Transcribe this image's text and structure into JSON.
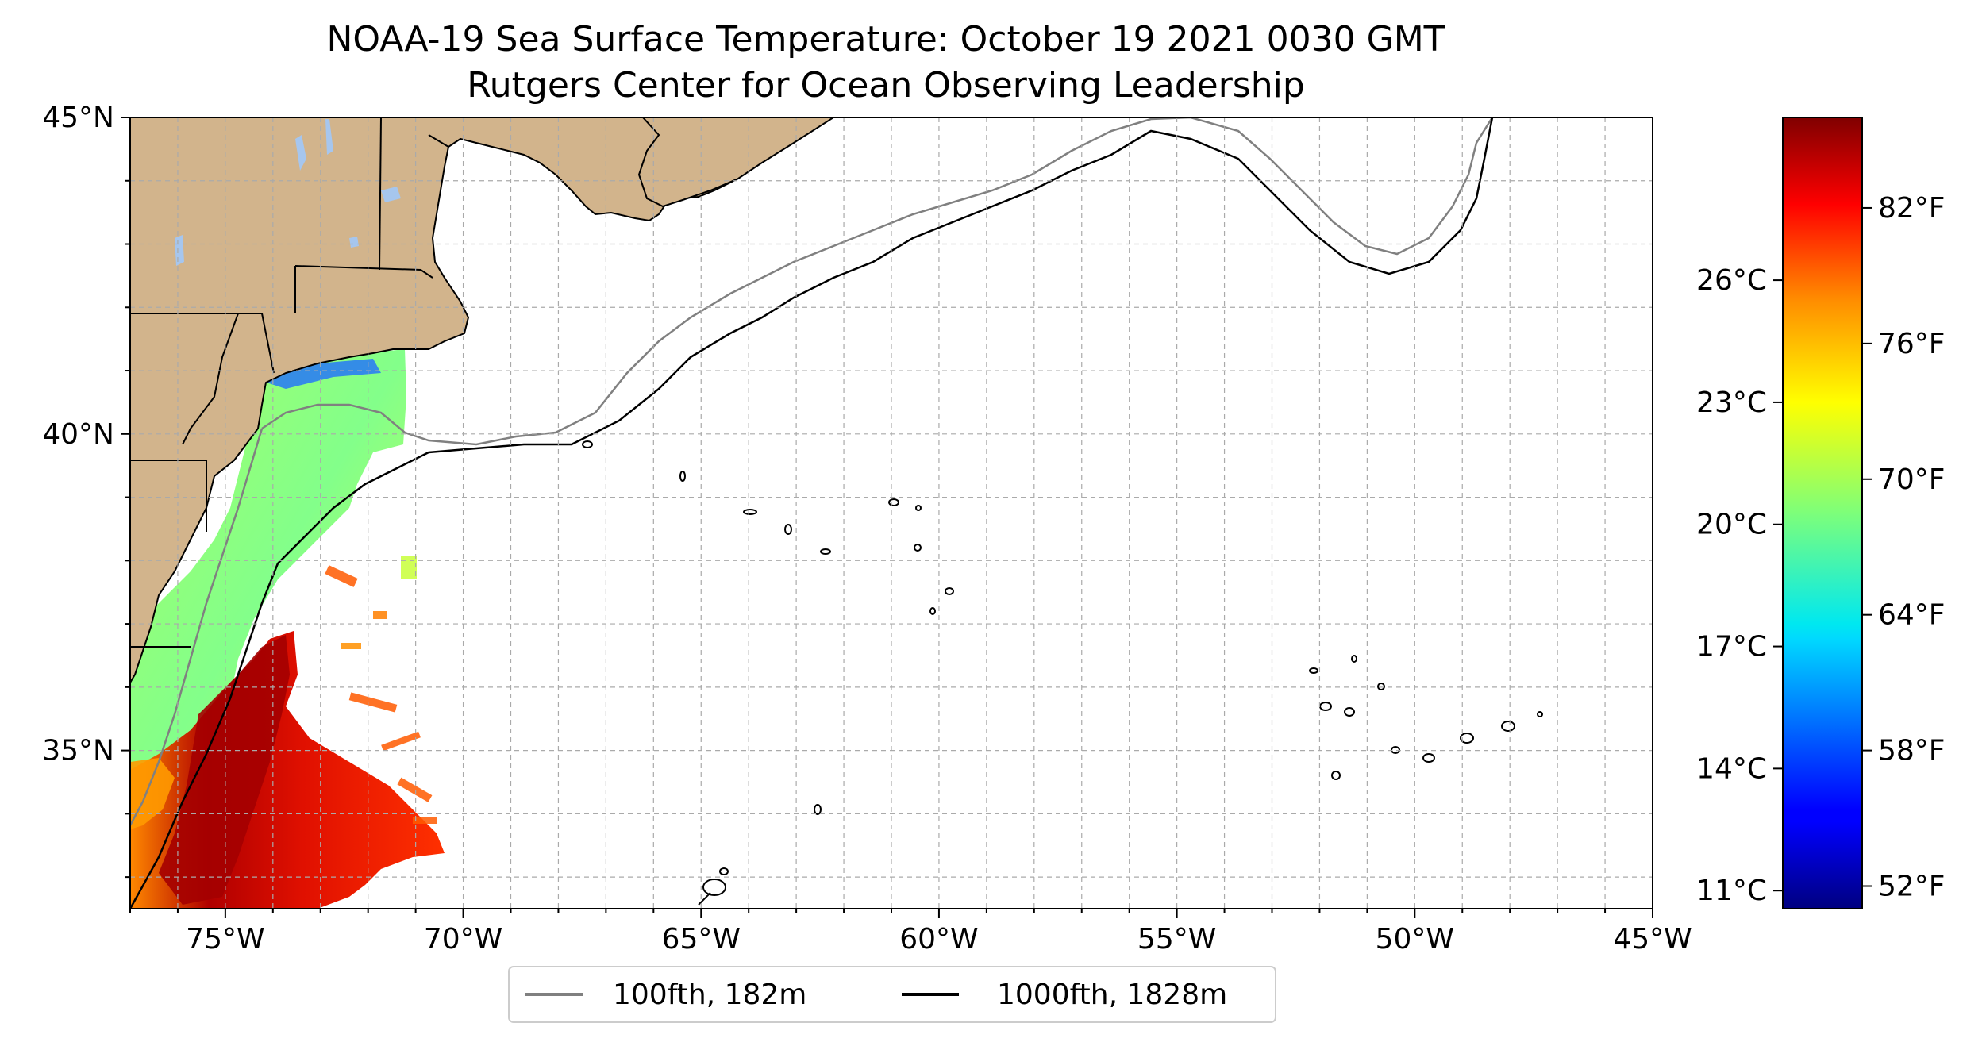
{
  "title_line1": "NOAA-19 Sea Surface Temperature: October 19 2021 0030 GMT",
  "title_line2": "Rutgers Center for Ocean Observing Leadership",
  "map": {
    "lon_range": [
      -77,
      -45
    ],
    "lat_range": [
      32.5,
      45
    ],
    "lon_ticks": [
      {
        "value": -75,
        "label": "75°W"
      },
      {
        "value": -70,
        "label": "70°W"
      },
      {
        "value": -65,
        "label": "65°W"
      },
      {
        "value": -60,
        "label": "60°W"
      },
      {
        "value": -55,
        "label": "55°W"
      },
      {
        "value": -50,
        "label": "50°W"
      },
      {
        "value": -45,
        "label": "45°W"
      }
    ],
    "lat_ticks": [
      {
        "value": 35,
        "label": "35°N"
      },
      {
        "value": 40,
        "label": "40°N"
      },
      {
        "value": 45,
        "label": "45°N"
      }
    ],
    "grid": true,
    "land_color": "#d2b48c",
    "lake_color": "#a6c6ee",
    "legend_position": "bottom-center"
  },
  "legend": [
    {
      "label": "100fth, 182m",
      "color": "#808080"
    },
    {
      "label": "1000fth, 1828m",
      "color": "#000000"
    }
  ],
  "colorbar": {
    "colormap": "jet",
    "range_f": [
      51,
      86
    ],
    "fahrenheit_ticks": [
      {
        "value": 52,
        "label": "52°F"
      },
      {
        "value": 58,
        "label": "58°F"
      },
      {
        "value": 64,
        "label": "64°F"
      },
      {
        "value": 70,
        "label": "70°F"
      },
      {
        "value": 76,
        "label": "76°F"
      },
      {
        "value": 82,
        "label": "82°F"
      }
    ],
    "celsius_ticks": [
      {
        "value": 11,
        "label": "11°C"
      },
      {
        "value": 14,
        "label": "14°C"
      },
      {
        "value": 17,
        "label": "17°C"
      },
      {
        "value": 20,
        "label": "20°C"
      },
      {
        "value": 23,
        "label": "23°C"
      },
      {
        "value": 26,
        "label": "26°C"
      }
    ]
  }
}
